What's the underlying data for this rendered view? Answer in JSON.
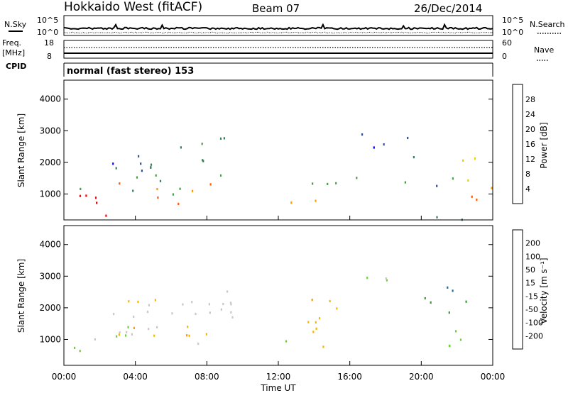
{
  "header": {
    "station": "Hokkaido West (fitACF)",
    "beam": "Beam 07",
    "date": "26/Dec/2014"
  },
  "aux_panels": {
    "nsky_label": "N.Sky",
    "nsearch_label": "N.Search",
    "noise_ticks_left": [
      "10^5",
      "10^0"
    ],
    "noise_ticks_right": [
      "10^5",
      "10^0"
    ],
    "freq_label_1": "Freq.",
    "freq_label_2": "[MHz]",
    "freq_ticks": [
      "18",
      "8"
    ],
    "nave_ticks": [
      "60",
      "0"
    ],
    "nave_label": "Nave",
    "cpid_label": "CPID",
    "cpid_text": "normal (fast stereo) 153"
  },
  "chart_data": [
    {
      "type": "heatmap",
      "name": "power",
      "ylabel": "Slant Range [km]",
      "ylim": [
        180,
        4600
      ],
      "yticks": [
        "1000",
        "2000",
        "3000",
        "4000"
      ],
      "colorbar_label": "Power [dB]",
      "colorbar_ticks": [
        "28",
        "24",
        "20",
        "16",
        "12",
        "8",
        "4"
      ],
      "colors": [
        "#0000ff",
        "#2e4ea0",
        "#3d7f5c",
        "#4aa04a",
        "#e8d000",
        "#ff9a00",
        "#ff5a00",
        "#ff0000"
      ],
      "regions": [
        {
          "t0": 0.2,
          "t1": 3.0,
          "r0": 300,
          "r1": 1000,
          "level": 7
        },
        {
          "t0": 1.5,
          "t1": 3.2,
          "r0": 230,
          "r1": 500,
          "level": 7
        },
        {
          "t0": 3.0,
          "t1": 9.0,
          "r0": 700,
          "r1": 1400,
          "level": 6
        },
        {
          "t0": 0.5,
          "t1": 9.0,
          "r0": 1000,
          "r1": 1700,
          "level": 3
        },
        {
          "t0": 4.0,
          "t1": 9.5,
          "r0": 1600,
          "r1": 2300,
          "level": 2
        },
        {
          "t0": 6.5,
          "t1": 9.8,
          "r0": 2300,
          "r1": 2900,
          "level": 2
        },
        {
          "t0": 0.5,
          "t1": 5.0,
          "r0": 1800,
          "r1": 2300,
          "level": 1
        },
        {
          "t0": 11.0,
          "t1": 15.5,
          "r0": 750,
          "r1": 1100,
          "level": 6
        },
        {
          "t0": 11.5,
          "t1": 16.5,
          "r0": 1100,
          "r1": 1600,
          "level": 3
        },
        {
          "t0": 16.5,
          "t1": 19.5,
          "r0": 1400,
          "r1": 1600,
          "level": 2
        },
        {
          "t0": 16.5,
          "t1": 20.5,
          "r0": 2500,
          "r1": 3000,
          "level": 1
        },
        {
          "t0": 19.5,
          "t1": 21.5,
          "r0": 1200,
          "r1": 2300,
          "level": 1
        },
        {
          "t0": 21.5,
          "t1": 24.0,
          "r0": 700,
          "r1": 1300,
          "level": 6
        },
        {
          "t0": 21.5,
          "t1": 23.5,
          "r0": 1300,
          "r1": 2600,
          "level": 4
        },
        {
          "t0": 10.0,
          "t1": 24.0,
          "r0": 200,
          "r1": 350,
          "level": 2
        }
      ]
    },
    {
      "type": "heatmap",
      "name": "velocity",
      "ylabel": "Slant Range [km]",
      "ylim": [
        180,
        4600
      ],
      "yticks": [
        "1000",
        "2000",
        "3000",
        "4000"
      ],
      "colorbar_label": "Velocity [m s⁻¹]",
      "colorbar_ticks": [
        "200",
        "100",
        "50",
        "15",
        "-15",
        "-50",
        "-100",
        "-200"
      ],
      "colors": [
        "#ff0000",
        "#ff5a00",
        "#ff9a00",
        "#f5b800",
        "#c8c8c8",
        "#6fcf3f",
        "#3a9a3a",
        "#2a6e8a",
        "#0020ff"
      ],
      "regions": [
        {
          "t0": 0.3,
          "t1": 4.0,
          "r0": 600,
          "r1": 1500,
          "level": 4
        },
        {
          "t0": 2.0,
          "t1": 9.5,
          "r0": 900,
          "r1": 2300,
          "level": 4
        },
        {
          "t0": 1.0,
          "t1": 8.0,
          "r0": 1000,
          "r1": 1800,
          "level": 3
        },
        {
          "t0": 6.5,
          "t1": 10.0,
          "r0": 1600,
          "r1": 2700,
          "level": 4
        },
        {
          "t0": 10.0,
          "t1": 11.8,
          "r0": 750,
          "r1": 1000,
          "level": 5
        },
        {
          "t0": 11.8,
          "t1": 13.0,
          "r0": 750,
          "r1": 1050,
          "level": 4
        },
        {
          "t0": 12.5,
          "t1": 16.0,
          "r0": 800,
          "r1": 1600,
          "level": 3
        },
        {
          "t0": 13.0,
          "t1": 16.0,
          "r0": 1500,
          "r1": 2300,
          "level": 3
        },
        {
          "t0": 19.0,
          "t1": 19.8,
          "r0": 2700,
          "r1": 3000,
          "level": 8
        },
        {
          "t0": 20.0,
          "t1": 22.5,
          "r0": 1500,
          "r1": 2700,
          "level": 6
        },
        {
          "t0": 21.5,
          "t1": 24.0,
          "r0": 700,
          "r1": 1700,
          "level": 5
        },
        {
          "t0": 16.5,
          "t1": 19.5,
          "r0": 2500,
          "r1": 3000,
          "level": 4
        },
        {
          "t0": 0.3,
          "t1": 3.0,
          "r0": 500,
          "r1": 800,
          "level": 5
        }
      ]
    }
  ],
  "xaxis": {
    "label": "Time UT",
    "ticks": [
      "00:00",
      "04:00",
      "08:00",
      "12:00",
      "16:00",
      "20:00",
      "00:00"
    ]
  }
}
